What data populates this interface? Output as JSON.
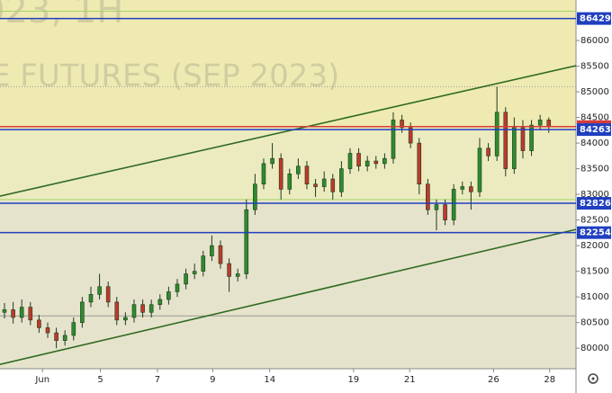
{
  "chart_data": {
    "type": "candlestick",
    "watermark": [
      "023, 1H",
      "E FUTURES (SEP 2023)"
    ],
    "ylim": [
      79600,
      86790
    ],
    "yticks": [
      80000,
      80500,
      81000,
      81500,
      82000,
      82500,
      83000,
      83500,
      84000,
      84500,
      85000,
      85500,
      86000
    ],
    "xlim": [
      -0.52,
      66.15
    ],
    "xticks": [
      {
        "value": 4.4,
        "label": "Jun"
      },
      {
        "value": 11.1,
        "label": "5"
      },
      {
        "value": 17.7,
        "label": "7"
      },
      {
        "value": 24.1,
        "label": "9"
      },
      {
        "value": 30.7,
        "label": "14"
      },
      {
        "value": 40.4,
        "label": "19"
      },
      {
        "value": 46.9,
        "label": "21"
      },
      {
        "value": 56.6,
        "label": "26"
      },
      {
        "value": 63.1,
        "label": "28"
      }
    ],
    "up_color": "#2e8b2e",
    "down_color": "#c0392b",
    "open": [
      80700,
      80750,
      80600,
      80800,
      80550,
      80400,
      80300,
      80150,
      80250,
      80500,
      80900,
      81050,
      81200,
      80900,
      80550,
      80600,
      80850,
      80700,
      80850,
      80950,
      81100,
      81250,
      81450,
      81500,
      81800,
      82000,
      81650,
      81400,
      81450,
      82700,
      83200,
      83600,
      83700,
      83100,
      83400,
      83550,
      83200,
      83150,
      83300,
      83050,
      83500,
      83800,
      83550,
      83650,
      83600,
      83700,
      84450,
      84300,
      84000,
      83200,
      82700,
      82800,
      82500,
      83100,
      83150,
      83050,
      83900,
      83750,
      84600,
      83500,
      84300,
      83850,
      84350,
      84450
    ],
    "high": [
      80880,
      80900,
      80950,
      80900,
      80650,
      80500,
      80400,
      80350,
      80600,
      81000,
      81200,
      81450,
      81300,
      81000,
      80700,
      80950,
      80950,
      80950,
      81050,
      81200,
      81350,
      81550,
      81650,
      81900,
      82200,
      82100,
      81750,
      81550,
      82900,
      83400,
      83700,
      84000,
      83800,
      83500,
      83700,
      83650,
      83300,
      83450,
      83400,
      83650,
      83900,
      83900,
      83750,
      83750,
      83800,
      84600,
      84550,
      84400,
      84100,
      83300,
      82900,
      82900,
      83200,
      83250,
      83250,
      84100,
      84000,
      85100,
      84700,
      84500,
      84450,
      84450,
      84550,
      84500
    ],
    "low": [
      80580,
      80480,
      80500,
      80450,
      80300,
      80200,
      80000,
      80050,
      80150,
      80400,
      80800,
      80950,
      80800,
      80450,
      80450,
      80500,
      80600,
      80600,
      80750,
      80850,
      81000,
      81150,
      81350,
      81400,
      81700,
      81550,
      81100,
      81300,
      81350,
      82600,
      83100,
      83500,
      82900,
      83000,
      83300,
      83100,
      82950,
      83050,
      82900,
      82950,
      83400,
      83450,
      83450,
      83500,
      83500,
      83600,
      84200,
      83900,
      83000,
      82600,
      82300,
      82400,
      82400,
      83000,
      82700,
      82950,
      83650,
      83650,
      83350,
      83400,
      83700,
      83750,
      84250,
      84200
    ],
    "close": [
      80750,
      80600,
      80800,
      80550,
      80400,
      80300,
      80150,
      80250,
      80500,
      80900,
      81050,
      81200,
      80900,
      80550,
      80600,
      80850,
      80700,
      80850,
      80950,
      81100,
      81250,
      81450,
      81500,
      81800,
      82000,
      81650,
      81400,
      81450,
      82700,
      83200,
      83600,
      83700,
      83100,
      83400,
      83550,
      83200,
      83150,
      83300,
      83050,
      83500,
      83800,
      83550,
      83650,
      83600,
      83700,
      84450,
      84300,
      84000,
      83200,
      82700,
      82800,
      82500,
      83100,
      83150,
      83050,
      83900,
      83750,
      84600,
      83500,
      84300,
      83850,
      84350,
      84450,
      84321
    ],
    "levels": [
      {
        "value": 86429,
        "color": "#1f3fbf"
      },
      {
        "value": 84321,
        "color": "#d63b3b"
      },
      {
        "value": 84263,
        "color": "#1f3fbf"
      },
      {
        "value": 82826,
        "color": "#1f3fbf"
      },
      {
        "value": 82254,
        "color": "#1f3fbf"
      }
    ],
    "guides": [
      {
        "value": 86570,
        "color": "#a6d36a"
      },
      {
        "value": 85100,
        "color": "#999999"
      },
      {
        "value": 82900,
        "color": "#a6d36a"
      },
      {
        "value": 80630,
        "color": "#999999"
      }
    ],
    "trendlines": [
      {
        "from": [
          -0.52,
          82965
        ],
        "to": [
          66.15,
          85509
        ],
        "color": "#2f6b22"
      },
      {
        "from": [
          -0.52,
          79684
        ],
        "to": [
          66.15,
          82316
        ],
        "color": "#2f6b22"
      }
    ]
  }
}
